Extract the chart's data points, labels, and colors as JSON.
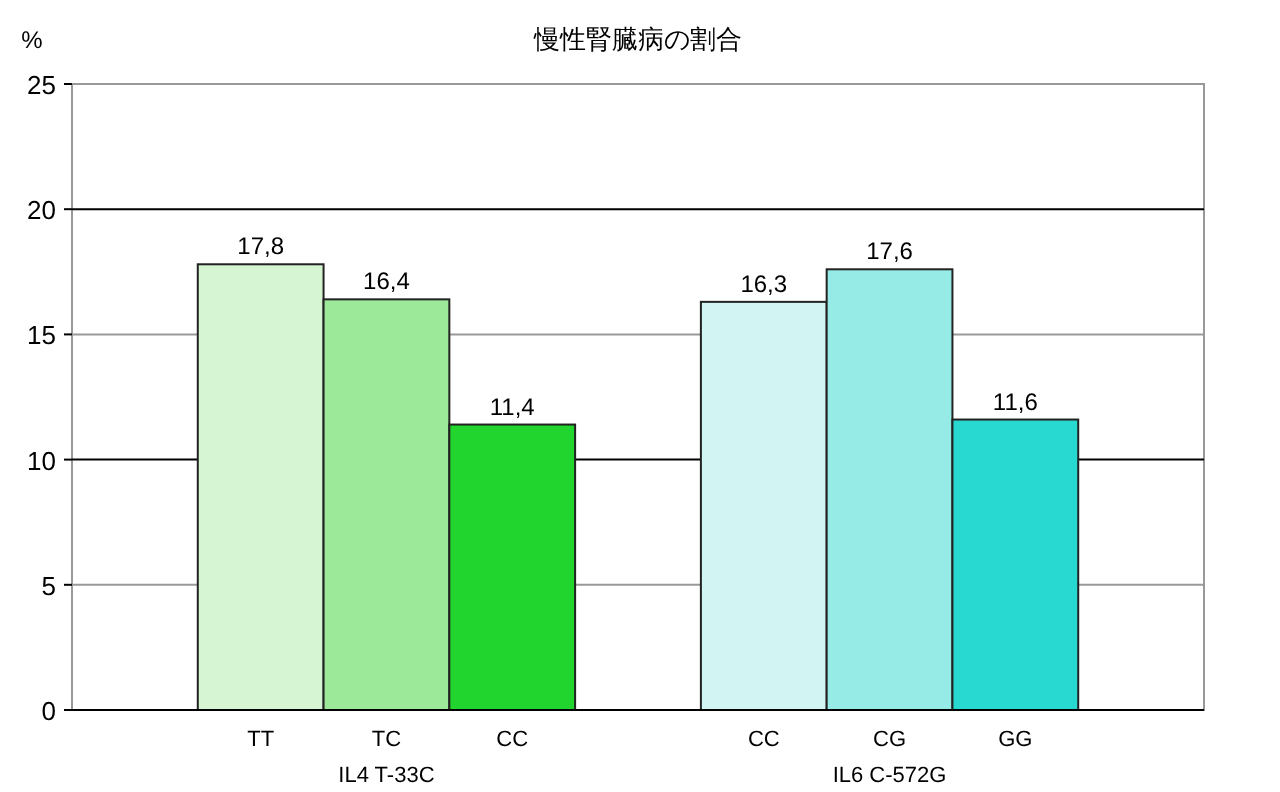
{
  "chart_data": {
    "type": "bar",
    "title": "慢性腎臓病の割合",
    "ylabel": "%",
    "categories": [
      null,
      "TT",
      "TC",
      "CC",
      null,
      "CC",
      "CG",
      "GG",
      null
    ],
    "values": [
      null,
      17.8,
      16.4,
      11.4,
      null,
      16.3,
      17.6,
      11.6,
      null
    ],
    "colors": [
      null,
      "#d6f5d2",
      "#9de99a",
      "#22d42e",
      null,
      "#d2f5f3",
      "#97ebe6",
      "#28d9d2",
      null
    ],
    "value_labels": [
      null,
      "17,8",
      "16,4",
      "11,4",
      null,
      "16,3",
      "17,6",
      "11,6",
      null
    ],
    "annotations": [
      "IL4 T-33C",
      "IL6 C-572G"
    ],
    "ylim": [
      0,
      25
    ],
    "yticks": [
      0,
      5,
      10,
      15,
      20,
      25
    ],
    "grid": "y"
  }
}
